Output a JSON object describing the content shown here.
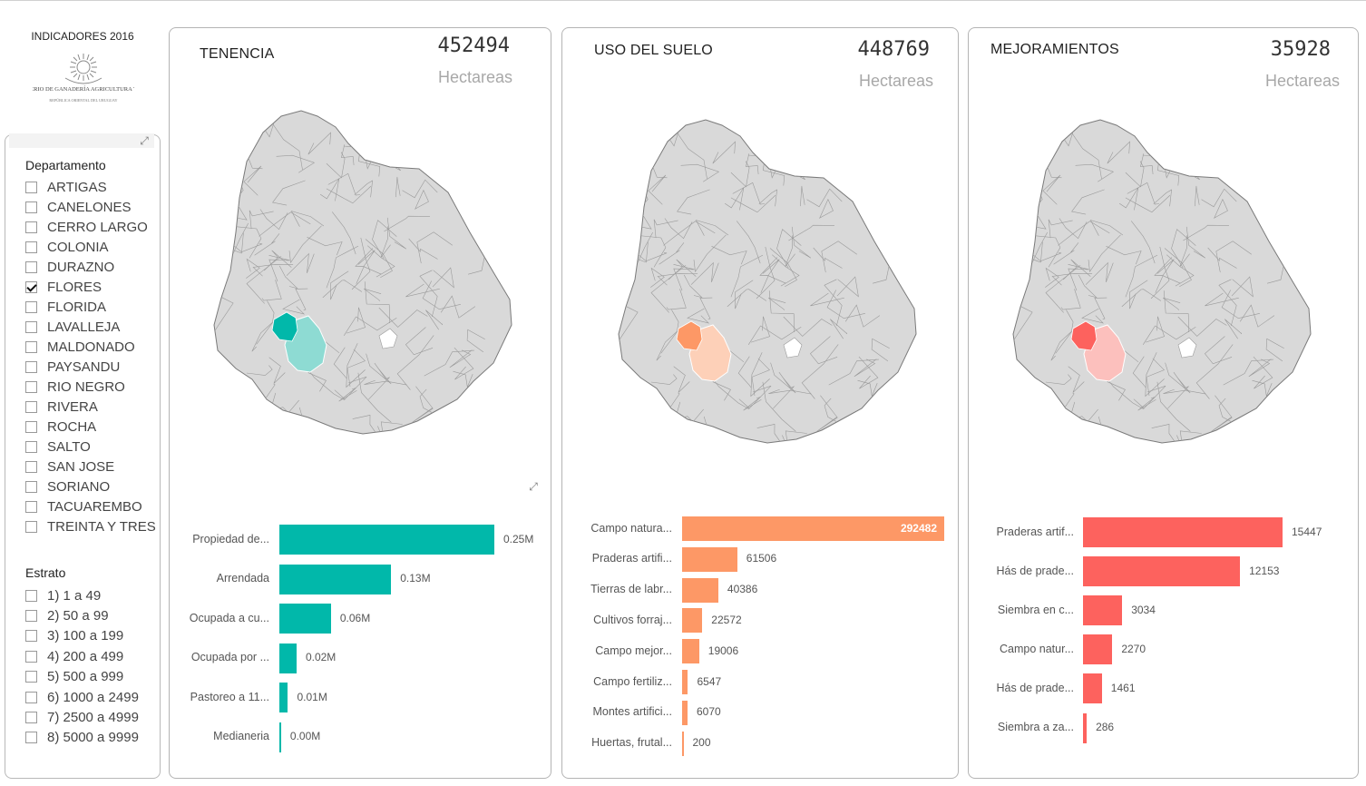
{
  "header": {
    "title": "INDICADORES 2016",
    "logo_text": "MINISTERIO DE GANADERÍA AGRICULTURA Y PESCA",
    "logo_subtext": "REPÚBLICA ORIENTAL DEL URUGUAY"
  },
  "slicers": {
    "departamento": {
      "label": "Departamento",
      "items": [
        {
          "label": "ARTIGAS",
          "checked": false
        },
        {
          "label": "CANELONES",
          "checked": false
        },
        {
          "label": "CERRO LARGO",
          "checked": false
        },
        {
          "label": "COLONIA",
          "checked": false
        },
        {
          "label": "DURAZNO",
          "checked": false
        },
        {
          "label": "FLORES",
          "checked": true
        },
        {
          "label": "FLORIDA",
          "checked": false
        },
        {
          "label": "LAVALLEJA",
          "checked": false
        },
        {
          "label": "MALDONADO",
          "checked": false
        },
        {
          "label": "PAYSANDU",
          "checked": false
        },
        {
          "label": "RIO NEGRO",
          "checked": false
        },
        {
          "label": "RIVERA",
          "checked": false
        },
        {
          "label": "ROCHA",
          "checked": false
        },
        {
          "label": "SALTO",
          "checked": false
        },
        {
          "label": "SAN JOSE",
          "checked": false
        },
        {
          "label": "SORIANO",
          "checked": false
        },
        {
          "label": "TACUAREMBO",
          "checked": false
        },
        {
          "label": "TREINTA Y TRES",
          "checked": false
        }
      ]
    },
    "estrato": {
      "label": "Estrato",
      "items": [
        {
          "label": "1) 1 a 49",
          "checked": false
        },
        {
          "label": "2) 50 a 99",
          "checked": false
        },
        {
          "label": "3) 100 a 199",
          "checked": false
        },
        {
          "label": "4) 200 a 499",
          "checked": false
        },
        {
          "label": "5) 500 a 999",
          "checked": false
        },
        {
          "label": "6) 1000 a 2499",
          "checked": false
        },
        {
          "label": "7) 2500 a 4999",
          "checked": false
        },
        {
          "label": "8) 5000 a 9999",
          "checked": false
        }
      ]
    }
  },
  "cards": [
    {
      "title": "TENENCIA",
      "value": "452494",
      "unit": "Hectareas"
    },
    {
      "title": "USO DEL SUELO",
      "value": "448769",
      "unit": "Hectareas"
    },
    {
      "title": "MEJORAMIENTOS",
      "value": "35928",
      "unit": "Hectareas"
    }
  ],
  "colors": {
    "tenencia": "#01b8aa",
    "uso": "#fd9866",
    "mejoramientos": "#fd625e",
    "map_base": "#d9d9d9",
    "map_border": "#7a7a7a"
  },
  "chart_data": [
    {
      "type": "bar",
      "orientation": "horizontal",
      "title": "",
      "color": "#01b8aa",
      "categories": [
        "Propiedad de...",
        "Arrendada",
        "Ocupada a cu...",
        "Ocupada por ...",
        "Pastoreo a 11...",
        "Medianeria"
      ],
      "values": [
        0.25,
        0.13,
        0.06,
        0.02,
        0.01,
        0.002
      ],
      "labels": [
        "0.25M",
        "0.13M",
        "0.06M",
        "0.02M",
        "0.01M",
        "0.00M"
      ],
      "xlim": [
        0,
        0.25
      ]
    },
    {
      "type": "bar",
      "orientation": "horizontal",
      "title": "",
      "color": "#fd9866",
      "categories": [
        "Campo natura...",
        "Praderas artifi...",
        "Tierras de labr...",
        "Cultivos forraj...",
        "Campo mejor...",
        "Campo fertiliz...",
        "Montes artifici...",
        "Huertas, frutal..."
      ],
      "values": [
        292482,
        61506,
        40386,
        22572,
        19006,
        6547,
        6070,
        200
      ],
      "labels": [
        "292482",
        "61506",
        "40386",
        "22572",
        "19006",
        "6547",
        "6070",
        "200"
      ],
      "xlim": [
        0,
        292482
      ]
    },
    {
      "type": "bar",
      "orientation": "horizontal",
      "title": "",
      "color": "#fd625e",
      "categories": [
        "Praderas artif...",
        "Hás de prade...",
        "Siembra en c...",
        "Campo natur...",
        "Hás de prade...",
        "Siembra a za..."
      ],
      "values": [
        15447,
        12153,
        3034,
        2270,
        1461,
        286
      ],
      "labels": [
        "15447",
        "12153",
        "3034",
        "2270",
        "1461",
        "286"
      ],
      "xlim": [
        0,
        15447
      ]
    }
  ]
}
